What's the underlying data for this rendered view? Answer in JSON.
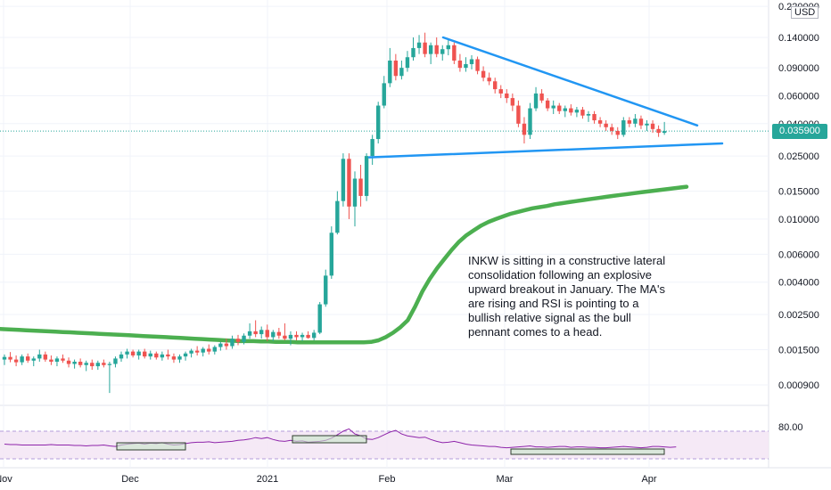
{
  "chart_data": {
    "type": "candlestick",
    "symbol": "INKW",
    "currency": "USD",
    "last_price": "0.035900",
    "price_axis": {
      "scale": "log",
      "tick_labels": [
        "0.220000",
        "0.140000",
        "0.090000",
        "0.060000",
        "0.040000",
        "0.025000",
        "0.015000",
        "0.010000",
        "0.006000",
        "0.004000",
        "0.002500",
        "0.001500",
        "0.000900"
      ]
    },
    "time_axis": {
      "tick_labels": [
        "Nov",
        "Dec",
        "2021",
        "Feb",
        "Mar",
        "Apr"
      ]
    },
    "rsi": {
      "tick_label": "80.00"
    },
    "annotation": "INKW is sitting in a constructive lateral consolidation following an explosive upward breakout in January. The MA's are rising and RSI is pointing to a bullish relative signal as the bull pennant comes to a head.",
    "candles": [
      [
        0.0013,
        0.0014,
        0.0012,
        0.00135
      ],
      [
        0.00135,
        0.00145,
        0.00125,
        0.0013
      ],
      [
        0.0013,
        0.00138,
        0.00118,
        0.00125
      ],
      [
        0.00125,
        0.0014,
        0.0012,
        0.00136
      ],
      [
        0.00136,
        0.00142,
        0.00124,
        0.00128
      ],
      [
        0.00128,
        0.00136,
        0.00118,
        0.00132
      ],
      [
        0.00132,
        0.0015,
        0.00126,
        0.0014
      ],
      [
        0.0014,
        0.00146,
        0.00126,
        0.0013
      ],
      [
        0.0013,
        0.00138,
        0.0012,
        0.00126
      ],
      [
        0.00126,
        0.00136,
        0.00118,
        0.00132
      ],
      [
        0.00132,
        0.0014,
        0.00124,
        0.00128
      ],
      [
        0.00128,
        0.00134,
        0.00116,
        0.00122
      ],
      [
        0.00122,
        0.0013,
        0.00114,
        0.00126
      ],
      [
        0.00126,
        0.00132,
        0.00116,
        0.0012
      ],
      [
        0.0012,
        0.00128,
        0.0011,
        0.00124
      ],
      [
        0.00124,
        0.0013,
        0.00112,
        0.00118
      ],
      [
        0.00118,
        0.00128,
        0.00112,
        0.00124
      ],
      [
        0.00124,
        0.0013,
        0.00116,
        0.0012
      ],
      [
        0.0012,
        0.00126,
        0.0008,
        0.00122
      ],
      [
        0.00122,
        0.00136,
        0.00116,
        0.00132
      ],
      [
        0.00132,
        0.00146,
        0.00126,
        0.0014
      ],
      [
        0.0014,
        0.00152,
        0.00132,
        0.00146
      ],
      [
        0.00146,
        0.0015,
        0.00134,
        0.00138
      ],
      [
        0.00138,
        0.0015,
        0.0013,
        0.00146
      ],
      [
        0.00146,
        0.00152,
        0.00132,
        0.00136
      ],
      [
        0.00136,
        0.00148,
        0.0013,
        0.00142
      ],
      [
        0.00142,
        0.00146,
        0.0013,
        0.00134
      ],
      [
        0.00134,
        0.00146,
        0.00128,
        0.0014
      ],
      [
        0.0014,
        0.0015,
        0.0013,
        0.00136
      ],
      [
        0.00136,
        0.00142,
        0.00124,
        0.0013
      ],
      [
        0.0013,
        0.0014,
        0.00124,
        0.00136
      ],
      [
        0.00136,
        0.00146,
        0.00128,
        0.00142
      ],
      [
        0.00142,
        0.00152,
        0.00134,
        0.00148
      ],
      [
        0.00148,
        0.00158,
        0.00138,
        0.00144
      ],
      [
        0.00144,
        0.00156,
        0.00136,
        0.00152
      ],
      [
        0.00152,
        0.00162,
        0.0014,
        0.00146
      ],
      [
        0.00146,
        0.0016,
        0.0014,
        0.00156
      ],
      [
        0.00156,
        0.00168,
        0.00148,
        0.00164
      ],
      [
        0.00164,
        0.00176,
        0.0015,
        0.00158
      ],
      [
        0.00158,
        0.00184,
        0.00152,
        0.00176
      ],
      [
        0.00176,
        0.00186,
        0.0016,
        0.00168
      ],
      [
        0.00168,
        0.0019,
        0.00162,
        0.00184
      ],
      [
        0.00184,
        0.0022,
        0.00176,
        0.00196
      ],
      [
        0.00196,
        0.0023,
        0.0018,
        0.00188
      ],
      [
        0.00188,
        0.0021,
        0.00176,
        0.002
      ],
      [
        0.002,
        0.00216,
        0.0017,
        0.0018
      ],
      [
        0.0018,
        0.002,
        0.0017,
        0.00194
      ],
      [
        0.00194,
        0.00206,
        0.00176,
        0.00184
      ],
      [
        0.00184,
        0.0022,
        0.00172,
        0.00176
      ],
      [
        0.00176,
        0.00196,
        0.0016,
        0.00186
      ],
      [
        0.00186,
        0.00196,
        0.00172,
        0.0018
      ],
      [
        0.0018,
        0.00192,
        0.0017,
        0.00186
      ],
      [
        0.00186,
        0.00196,
        0.00176,
        0.00178
      ],
      [
        0.00178,
        0.002,
        0.00172,
        0.00192
      ],
      [
        0.00192,
        0.003,
        0.00188,
        0.0029
      ],
      [
        0.0029,
        0.0048,
        0.0028,
        0.0044
      ],
      [
        0.0044,
        0.009,
        0.0042,
        0.0082
      ],
      [
        0.0082,
        0.015,
        0.008,
        0.013
      ],
      [
        0.013,
        0.026,
        0.012,
        0.024
      ],
      [
        0.024,
        0.026,
        0.01,
        0.012
      ],
      [
        0.012,
        0.02,
        0.009,
        0.018
      ],
      [
        0.018,
        0.022,
        0.012,
        0.014
      ],
      [
        0.014,
        0.026,
        0.013,
        0.025
      ],
      [
        0.025,
        0.034,
        0.022,
        0.032
      ],
      [
        0.032,
        0.055,
        0.03,
        0.052
      ],
      [
        0.052,
        0.08,
        0.05,
        0.072
      ],
      [
        0.072,
        0.12,
        0.068,
        0.1
      ],
      [
        0.1,
        0.11,
        0.075,
        0.08
      ],
      [
        0.08,
        0.1,
        0.076,
        0.09
      ],
      [
        0.09,
        0.115,
        0.085,
        0.105
      ],
      [
        0.105,
        0.14,
        0.1,
        0.12
      ],
      [
        0.12,
        0.145,
        0.11,
        0.13
      ],
      [
        0.13,
        0.15,
        0.105,
        0.11
      ],
      [
        0.11,
        0.13,
        0.095,
        0.125
      ],
      [
        0.125,
        0.14,
        0.105,
        0.11
      ],
      [
        0.11,
        0.125,
        0.1,
        0.118
      ],
      [
        0.118,
        0.135,
        0.108,
        0.125
      ],
      [
        0.125,
        0.13,
        0.095,
        0.1
      ],
      [
        0.1,
        0.11,
        0.085,
        0.09
      ],
      [
        0.09,
        0.105,
        0.085,
        0.095
      ],
      [
        0.095,
        0.108,
        0.088,
        0.102
      ],
      [
        0.102,
        0.106,
        0.082,
        0.086
      ],
      [
        0.086,
        0.092,
        0.074,
        0.078
      ],
      [
        0.078,
        0.084,
        0.07,
        0.074
      ],
      [
        0.074,
        0.078,
        0.062,
        0.066
      ],
      [
        0.066,
        0.07,
        0.058,
        0.062
      ],
      [
        0.062,
        0.066,
        0.054,
        0.058
      ],
      [
        0.058,
        0.062,
        0.048,
        0.052
      ],
      [
        0.052,
        0.056,
        0.038,
        0.04
      ],
      [
        0.04,
        0.044,
        0.03,
        0.034
      ],
      [
        0.034,
        0.054,
        0.032,
        0.05
      ],
      [
        0.05,
        0.068,
        0.048,
        0.062
      ],
      [
        0.062,
        0.066,
        0.054,
        0.056
      ],
      [
        0.056,
        0.058,
        0.048,
        0.05
      ],
      [
        0.05,
        0.056,
        0.046,
        0.052
      ],
      [
        0.052,
        0.054,
        0.046,
        0.048
      ],
      [
        0.048,
        0.052,
        0.044,
        0.05
      ],
      [
        0.05,
        0.053,
        0.045,
        0.047
      ],
      [
        0.047,
        0.051,
        0.044,
        0.049
      ],
      [
        0.049,
        0.051,
        0.043,
        0.045
      ],
      [
        0.045,
        0.048,
        0.041,
        0.046
      ],
      [
        0.046,
        0.048,
        0.04,
        0.042
      ],
      [
        0.042,
        0.044,
        0.038,
        0.04
      ],
      [
        0.04,
        0.042,
        0.036,
        0.038
      ],
      [
        0.038,
        0.04,
        0.034,
        0.036
      ],
      [
        0.036,
        0.038,
        0.032,
        0.034
      ],
      [
        0.034,
        0.044,
        0.033,
        0.042
      ],
      [
        0.042,
        0.044,
        0.038,
        0.04
      ],
      [
        0.04,
        0.046,
        0.038,
        0.043
      ],
      [
        0.043,
        0.045,
        0.037,
        0.039
      ],
      [
        0.039,
        0.042,
        0.036,
        0.04
      ],
      [
        0.04,
        0.042,
        0.035,
        0.037
      ],
      [
        0.037,
        0.039,
        0.033,
        0.035
      ],
      [
        0.035,
        0.041,
        0.034,
        0.0359
      ]
    ],
    "ma": [
      0.00205,
      0.00204,
      0.00203,
      0.00202,
      0.00201,
      0.002,
      0.00199,
      0.00198,
      0.00197,
      0.00196,
      0.00195,
      0.00194,
      0.00193,
      0.00192,
      0.00191,
      0.0019,
      0.00189,
      0.00188,
      0.00187,
      0.00186,
      0.00185,
      0.00184,
      0.00183,
      0.00182,
      0.00181,
      0.0018,
      0.00179,
      0.00178,
      0.00177,
      0.00176,
      0.00175,
      0.00174,
      0.00173,
      0.00172,
      0.00171,
      0.0017,
      0.0017,
      0.0017,
      0.00169,
      0.00169,
      0.00168,
      0.00168,
      0.00168,
      0.00167,
      0.00167,
      0.00167,
      0.00167,
      0.00167,
      0.00167,
      0.00167,
      0.00167,
      0.00167,
      0.00167,
      0.00168,
      0.00172,
      0.0018,
      0.00192,
      0.00208,
      0.0023,
      0.0028,
      0.0035,
      0.0042,
      0.0049,
      0.0056,
      0.0064,
      0.0072,
      0.0079,
      0.0085,
      0.0091,
      0.0096,
      0.01,
      0.0104,
      0.0108,
      0.0111,
      0.0114,
      0.0117,
      0.0119,
      0.0121,
      0.0124,
      0.0126,
      0.0128,
      0.013,
      0.0132,
      0.0134,
      0.0136,
      0.0138,
      0.014,
      0.0142,
      0.0144,
      0.0146,
      0.0148,
      0.015,
      0.0152,
      0.0154,
      0.0156,
      0.0158,
      0.016
    ],
    "trendlines": [
      {
        "name": "upper",
        "from": [
          72,
          0.14
        ],
        "to": [
          115,
          0.039
        ]
      },
      {
        "name": "lower",
        "from": [
          60,
          0.0245
        ],
        "to": [
          120,
          0.03
        ]
      }
    ],
    "rsi_values": [
      52,
      51,
      51,
      50,
      50,
      50,
      50,
      50,
      51,
      50,
      50,
      50,
      49,
      49,
      48,
      49,
      49,
      50,
      48,
      47,
      50,
      52,
      53,
      54,
      52,
      54,
      53,
      55,
      52,
      50,
      51,
      53,
      55,
      56,
      56,
      57,
      55,
      56,
      57,
      58,
      60,
      61,
      63,
      66,
      64,
      66,
      62,
      59,
      58,
      60,
      58,
      59,
      56,
      57,
      58,
      60,
      65,
      72,
      80,
      85,
      74,
      70,
      63,
      62,
      66,
      72,
      78,
      82,
      74,
      70,
      68,
      66,
      67,
      62,
      58,
      55,
      56,
      58,
      55,
      52,
      50,
      49,
      48,
      47,
      47,
      45,
      44,
      45,
      46,
      47,
      48,
      46,
      46,
      45,
      46,
      47,
      47,
      45,
      46,
      46,
      45,
      45,
      44,
      44,
      45,
      46,
      47,
      46,
      45,
      44,
      45,
      47,
      47,
      46,
      45,
      46
    ]
  }
}
